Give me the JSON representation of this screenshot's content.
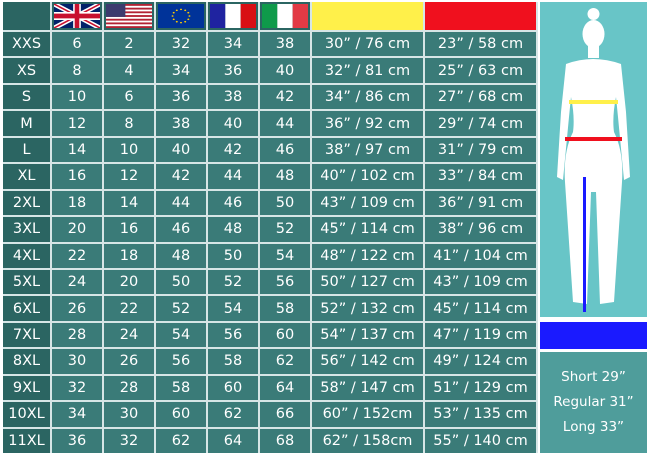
{
  "colors": {
    "yellow": "#fff04a",
    "red": "#f0101e",
    "blue": "#1a1aff"
  },
  "header": {
    "flags": [
      "uk-flag",
      "us-flag",
      "eu-flag",
      "france-flag",
      "italy-flag"
    ],
    "measure_columns": [
      "yellow-waist",
      "red-hip"
    ]
  },
  "rows": [
    [
      "XXS",
      "6",
      "2",
      "32",
      "34",
      "38",
      "30” / 76 cm",
      "23” / 58 cm"
    ],
    [
      "XS",
      "8",
      "4",
      "34",
      "36",
      "40",
      "32” / 81 cm",
      "25” / 63 cm"
    ],
    [
      "S",
      "10",
      "6",
      "36",
      "38",
      "42",
      "34” / 86 cm",
      "27” / 68 cm"
    ],
    [
      "M",
      "12",
      "8",
      "38",
      "40",
      "44",
      "36” / 92 cm",
      "29” / 74 cm"
    ],
    [
      "L",
      "14",
      "10",
      "40",
      "42",
      "46",
      "38” / 97 cm",
      "31” / 79 cm"
    ],
    [
      "XL",
      "16",
      "12",
      "42",
      "44",
      "48",
      "40” / 102 cm",
      "33” / 84 cm"
    ],
    [
      "2XL",
      "18",
      "14",
      "44",
      "46",
      "50",
      "43” / 109 cm",
      "36” / 91 cm"
    ],
    [
      "3XL",
      "20",
      "16",
      "46",
      "48",
      "52",
      "45” / 114 cm",
      "38” / 96 cm"
    ],
    [
      "4XL",
      "22",
      "18",
      "48",
      "50",
      "54",
      "48” / 122 cm",
      "41” / 104 cm"
    ],
    [
      "5XL",
      "24",
      "20",
      "50",
      "52",
      "56",
      "50” / 127 cm",
      "43” / 109 cm"
    ],
    [
      "6XL",
      "26",
      "22",
      "52",
      "54",
      "58",
      "52” / 132 cm",
      "45” / 114 cm"
    ],
    [
      "7XL",
      "28",
      "24",
      "54",
      "56",
      "60",
      "54” / 137 cm",
      "47” / 119 cm"
    ],
    [
      "8XL",
      "30",
      "26",
      "56",
      "58",
      "62",
      "56” / 142 cm",
      "49” / 124 cm"
    ],
    [
      "9XL",
      "32",
      "28",
      "58",
      "60",
      "64",
      "58” / 147 cm",
      "51” / 129 cm"
    ],
    [
      "10XL",
      "34",
      "30",
      "60",
      "62",
      "66",
      "60” / 152cm",
      "53” / 135 cm"
    ],
    [
      "11XL",
      "36",
      "32",
      "62",
      "64",
      "68",
      "62” / 158cm",
      "55” / 140 cm"
    ]
  ],
  "inseam": {
    "short": "Short 29”",
    "regular": "Regular 31”",
    "long": "Long 33”"
  }
}
